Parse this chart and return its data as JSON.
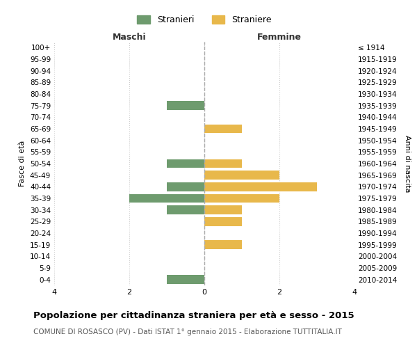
{
  "age_groups": [
    "100+",
    "95-99",
    "90-94",
    "85-89",
    "80-84",
    "75-79",
    "70-74",
    "65-69",
    "60-64",
    "55-59",
    "50-54",
    "45-49",
    "40-44",
    "35-39",
    "30-34",
    "25-29",
    "20-24",
    "15-19",
    "10-14",
    "5-9",
    "0-4"
  ],
  "birth_years": [
    "≤ 1914",
    "1915-1919",
    "1920-1924",
    "1925-1929",
    "1930-1934",
    "1935-1939",
    "1940-1944",
    "1945-1949",
    "1950-1954",
    "1955-1959",
    "1960-1964",
    "1965-1969",
    "1970-1974",
    "1975-1979",
    "1980-1984",
    "1985-1989",
    "1990-1994",
    "1995-1999",
    "2000-2004",
    "2005-2009",
    "2010-2014"
  ],
  "maschi": [
    0,
    0,
    0,
    0,
    0,
    1,
    0,
    0,
    0,
    0,
    1,
    0,
    1,
    2,
    1,
    0,
    0,
    0,
    0,
    0,
    1
  ],
  "femmine": [
    0,
    0,
    0,
    0,
    0,
    0,
    0,
    1,
    0,
    0,
    1,
    2,
    3,
    2,
    1,
    1,
    0,
    1,
    0,
    0,
    0
  ],
  "maschi_color": "#6e9b6e",
  "femmine_color": "#e8b84b",
  "title": "Popolazione per cittadinanza straniera per età e sesso - 2015",
  "subtitle": "COMUNE DI ROSASCO (PV) - Dati ISTAT 1° gennaio 2015 - Elaborazione TUTTITALIA.IT",
  "ylabel_left": "Fasce di età",
  "ylabel_right": "Anni di nascita",
  "xlabel_left": "Maschi",
  "xlabel_right": "Femmine",
  "xlim": 4,
  "legend_stranieri": "Stranieri",
  "legend_straniere": "Straniere",
  "bg_color": "#ffffff",
  "grid_color": "#cccccc",
  "bar_height": 0.75
}
